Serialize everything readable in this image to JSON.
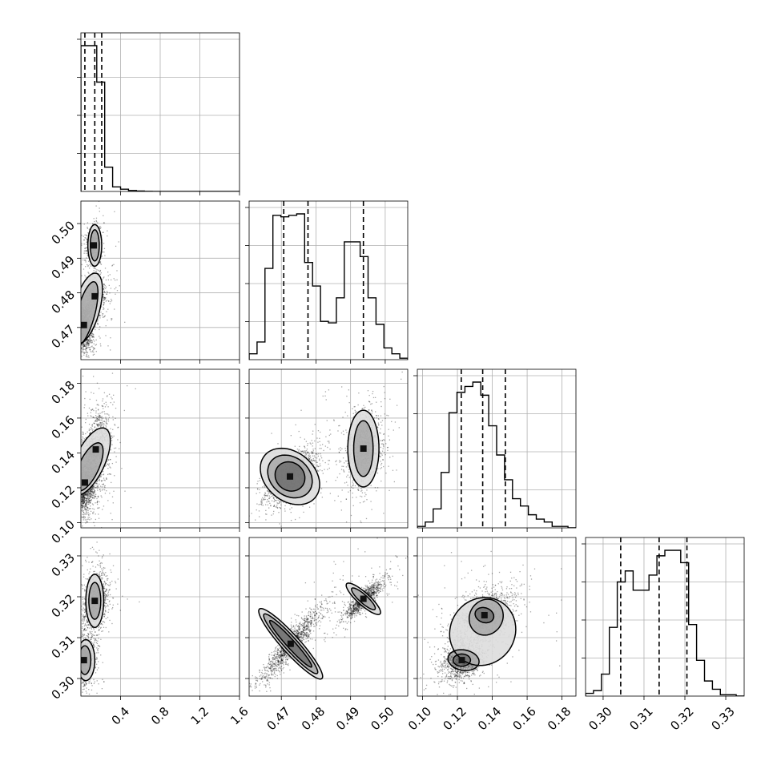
{
  "chart_data": {
    "type": "corner",
    "title": "",
    "grid": true,
    "parameters": [
      {
        "xlabel": "",
        "range": [
          0.0,
          1.6
        ],
        "ticks": [
          0.4,
          0.8,
          1.2,
          1.6
        ],
        "tick_labels": [
          "0.4",
          "0.8",
          "1.2",
          "1.6"
        ],
        "quantiles": [
          0.04,
          0.14,
          0.21
        ]
      },
      {
        "xlabel": "",
        "range": [
          0.4607,
          0.5065
        ],
        "ticks": [
          0.47,
          0.48,
          0.49,
          0.5
        ],
        "tick_labels": [
          "0.47",
          "0.48",
          "0.49",
          "0.50"
        ],
        "quantiles": [
          0.4707,
          0.4777,
          0.4937
        ]
      },
      {
        "xlabel": "",
        "range": [
          0.097,
          0.188
        ],
        "ticks": [
          0.1,
          0.12,
          0.14,
          0.16,
          0.18
        ],
        "tick_labels": [
          "0.10",
          "0.12",
          "0.14",
          "0.16",
          "0.18"
        ],
        "quantiles": [
          0.1222,
          0.1345,
          0.1475
        ]
      },
      {
        "xlabel": "",
        "range": [
          0.2957,
          0.3345
        ],
        "ticks": [
          0.3,
          0.31,
          0.32,
          0.33
        ],
        "tick_labels": [
          "0.30",
          "0.31",
          "0.32",
          "0.33"
        ],
        "quantiles": [
          0.3043,
          0.3137,
          0.3205
        ]
      }
    ],
    "histograms": [
      {
        "param": 0,
        "counts": [
          96,
          96,
          72,
          16,
          3,
          1.5,
          0.6,
          0.3,
          0.1,
          0,
          0,
          0,
          0,
          0,
          0,
          0,
          0,
          0,
          0,
          0
        ]
      },
      {
        "param": 1,
        "counts": [
          4,
          12,
          62,
          98,
          97,
          98,
          99,
          66,
          50,
          26,
          25,
          42,
          80,
          80,
          70,
          42,
          24,
          8,
          4,
          1
        ]
      },
      {
        "param": 2,
        "counts": [
          1,
          4,
          13,
          38,
          79,
          93,
          97,
          100,
          91,
          70,
          50,
          33,
          20,
          15,
          9,
          6,
          4,
          1,
          1,
          0
        ]
      },
      {
        "param": 3,
        "counts": [
          2,
          4,
          16,
          50,
          83,
          91,
          77,
          77,
          88,
          102,
          106,
          106,
          97,
          52,
          26,
          11,
          5,
          1,
          1,
          0
        ]
      }
    ],
    "pairs": [
      {
        "x": 0,
        "y": 1,
        "modes": [
          {
            "cx": 0.03,
            "cy": 0.4707,
            "sx": 0.05,
            "sy": 0.0035,
            "rho": 0.2,
            "w": 0.55
          },
          {
            "cx": 0.14,
            "cy": 0.479,
            "sx": 0.07,
            "sy": 0.003,
            "rho": 0.3,
            "w": 0.2
          },
          {
            "cx": 0.13,
            "cy": 0.4937,
            "sx": 0.04,
            "sy": 0.003,
            "rho": 0.1,
            "w": 0.25
          }
        ],
        "contours": [
          {
            "level": 1,
            "cx": 0.05,
            "cy": 0.474,
            "rx": 0.09,
            "ry": 0.0095,
            "angle": 15
          },
          {
            "level": 2,
            "cx": 0.06,
            "cy": 0.4755,
            "rx": 0.13,
            "ry": 0.0105,
            "angle": 15
          },
          {
            "level": 1,
            "cx": 0.14,
            "cy": 0.4937,
            "rx": 0.045,
            "ry": 0.0045,
            "angle": 0
          },
          {
            "level": 2,
            "cx": 0.14,
            "cy": 0.4937,
            "rx": 0.07,
            "ry": 0.006,
            "angle": 0
          }
        ]
      },
      {
        "x": 0,
        "y": 2,
        "modes": [
          {
            "cx": 0.04,
            "cy": 0.123,
            "sx": 0.06,
            "sy": 0.008,
            "rho": 0.3,
            "w": 0.55
          },
          {
            "cx": 0.15,
            "cy": 0.142,
            "sx": 0.07,
            "sy": 0.012,
            "rho": 0.3,
            "w": 0.45
          }
        ],
        "contours": [
          {
            "level": 1,
            "cx": 0.08,
            "cy": 0.132,
            "rx": 0.1,
            "ry": 0.015,
            "angle": 25
          },
          {
            "level": 2,
            "cx": 0.09,
            "cy": 0.135,
            "rx": 0.15,
            "ry": 0.021,
            "angle": 25
          }
        ]
      },
      {
        "x": 0,
        "y": 3,
        "modes": [
          {
            "cx": 0.03,
            "cy": 0.3045,
            "sx": 0.05,
            "sy": 0.0025,
            "rho": 0.2,
            "w": 0.5
          },
          {
            "cx": 0.14,
            "cy": 0.319,
            "sx": 0.06,
            "sy": 0.0035,
            "rho": 0.2,
            "w": 0.5
          }
        ],
        "contours": [
          {
            "level": 1,
            "cx": 0.04,
            "cy": 0.3045,
            "rx": 0.06,
            "ry": 0.0035,
            "angle": 0
          },
          {
            "level": 2,
            "cx": 0.05,
            "cy": 0.3045,
            "rx": 0.09,
            "ry": 0.005,
            "angle": 0
          },
          {
            "level": 1,
            "cx": 0.14,
            "cy": 0.319,
            "rx": 0.06,
            "ry": 0.0045,
            "angle": 0
          },
          {
            "level": 2,
            "cx": 0.14,
            "cy": 0.319,
            "rx": 0.09,
            "ry": 0.0065,
            "angle": 0
          }
        ]
      },
      {
        "x": 1,
        "y": 2,
        "modes": [
          {
            "cx": 0.4725,
            "cy": 0.1265,
            "sx": 0.0042,
            "sy": 0.0085,
            "rho": 0.7,
            "w": 0.55
          },
          {
            "cx": 0.4937,
            "cy": 0.1425,
            "sx": 0.0028,
            "sy": 0.011,
            "rho": 0.2,
            "w": 0.45
          }
        ],
        "contours": [
          {
            "level": 0,
            "cx": 0.4725,
            "cy": 0.1265,
            "rx": 0.0045,
            "ry": 0.008,
            "angle": 40
          },
          {
            "level": 1,
            "cx": 0.4725,
            "cy": 0.1265,
            "rx": 0.007,
            "ry": 0.011,
            "angle": 40
          },
          {
            "level": 2,
            "cx": 0.4725,
            "cy": 0.1265,
            "rx": 0.0095,
            "ry": 0.014,
            "angle": 40
          },
          {
            "level": 1,
            "cx": 0.4937,
            "cy": 0.1425,
            "rx": 0.0028,
            "ry": 0.016,
            "angle": 0
          },
          {
            "level": 2,
            "cx": 0.4937,
            "cy": 0.1425,
            "rx": 0.0045,
            "ry": 0.022,
            "angle": 0
          }
        ]
      },
      {
        "x": 1,
        "y": 3,
        "modes": [
          {
            "cx": 0.4727,
            "cy": 0.3085,
            "sx": 0.0045,
            "sy": 0.0045,
            "rho": 0.93,
            "w": 0.55
          },
          {
            "cx": 0.4937,
            "cy": 0.3195,
            "sx": 0.0027,
            "sy": 0.0023,
            "rho": 0.85,
            "w": 0.45
          }
        ],
        "contours": [
          {
            "level": 0,
            "cx": 0.4727,
            "cy": 0.3085,
            "rx": 0.009,
            "ry": 0.001,
            "angle": 48
          },
          {
            "level": 1,
            "cx": 0.4727,
            "cy": 0.3085,
            "rx": 0.0115,
            "ry": 0.0016,
            "angle": 48
          },
          {
            "level": 2,
            "cx": 0.4727,
            "cy": 0.3085,
            "rx": 0.0135,
            "ry": 0.0022,
            "angle": 48
          },
          {
            "level": 1,
            "cx": 0.4937,
            "cy": 0.3195,
            "rx": 0.0045,
            "ry": 0.001,
            "angle": 42
          },
          {
            "level": 2,
            "cx": 0.4937,
            "cy": 0.3195,
            "rx": 0.0065,
            "ry": 0.0015,
            "angle": 42
          }
        ]
      },
      {
        "x": 2,
        "y": 3,
        "modes": [
          {
            "cx": 0.1225,
            "cy": 0.3045,
            "sx": 0.006,
            "sy": 0.0025,
            "rho": 0.3,
            "w": 0.5
          },
          {
            "cx": 0.1355,
            "cy": 0.3155,
            "sx": 0.009,
            "sy": 0.0035,
            "rho": 0.4,
            "w": 0.5
          }
        ],
        "contours": [
          {
            "level": 0,
            "cx": 0.1225,
            "cy": 0.3045,
            "rx": 0.005,
            "ry": 0.0015,
            "angle": 0
          },
          {
            "level": 1,
            "cx": 0.1235,
            "cy": 0.3045,
            "rx": 0.009,
            "ry": 0.0025,
            "angle": 10
          },
          {
            "level": 0,
            "cx": 0.1355,
            "cy": 0.3155,
            "rx": 0.0055,
            "ry": 0.0018,
            "angle": 20
          },
          {
            "level": 1,
            "cx": 0.1365,
            "cy": 0.315,
            "rx": 0.0095,
            "ry": 0.0045,
            "angle": 30
          },
          {
            "level": 2,
            "cx": 0.1345,
            "cy": 0.3115,
            "rx": 0.0185,
            "ry": 0.0085,
            "angle": 35
          }
        ]
      }
    ]
  }
}
